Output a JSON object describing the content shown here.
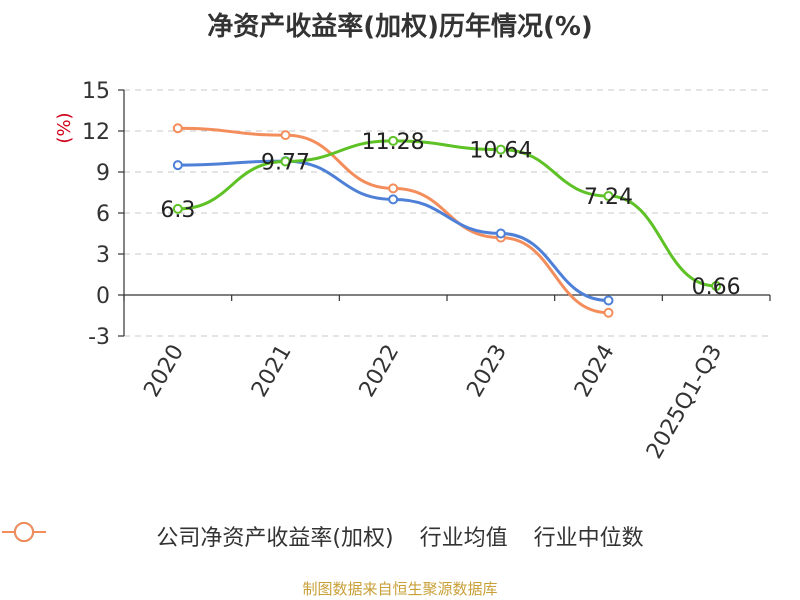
{
  "chart_data": {
    "type": "line",
    "title": "净资产收益率(加权)历年情况(%)",
    "ylabel": "(%)",
    "categories": [
      "2020",
      "2021",
      "2022",
      "2023",
      "2024",
      "2025Q1-Q3"
    ],
    "yticks": [
      "15",
      "12",
      "9",
      "6",
      "3",
      "0",
      "-3"
    ],
    "ylim": [
      -3,
      15
    ],
    "series": [
      {
        "name": "公司净资产收益率(加权)",
        "color": "#5ec226",
        "values": [
          6.3,
          9.77,
          11.28,
          10.64,
          7.24,
          0.66
        ],
        "labels": [
          "6.3",
          "9.77",
          "11.28",
          "10.64",
          "7.24",
          "0.66"
        ]
      },
      {
        "name": "行业均值",
        "color": "#4f80d8",
        "values": [
          9.5,
          9.8,
          7.0,
          4.5,
          -0.4,
          null
        ]
      },
      {
        "name": "行业中位数",
        "color": "#f48d5c",
        "values": [
          12.2,
          11.7,
          7.8,
          4.2,
          -1.3,
          null
        ]
      }
    ],
    "source": "制图数据来自恒生聚源数据库",
    "source_color": "#c9a038"
  }
}
